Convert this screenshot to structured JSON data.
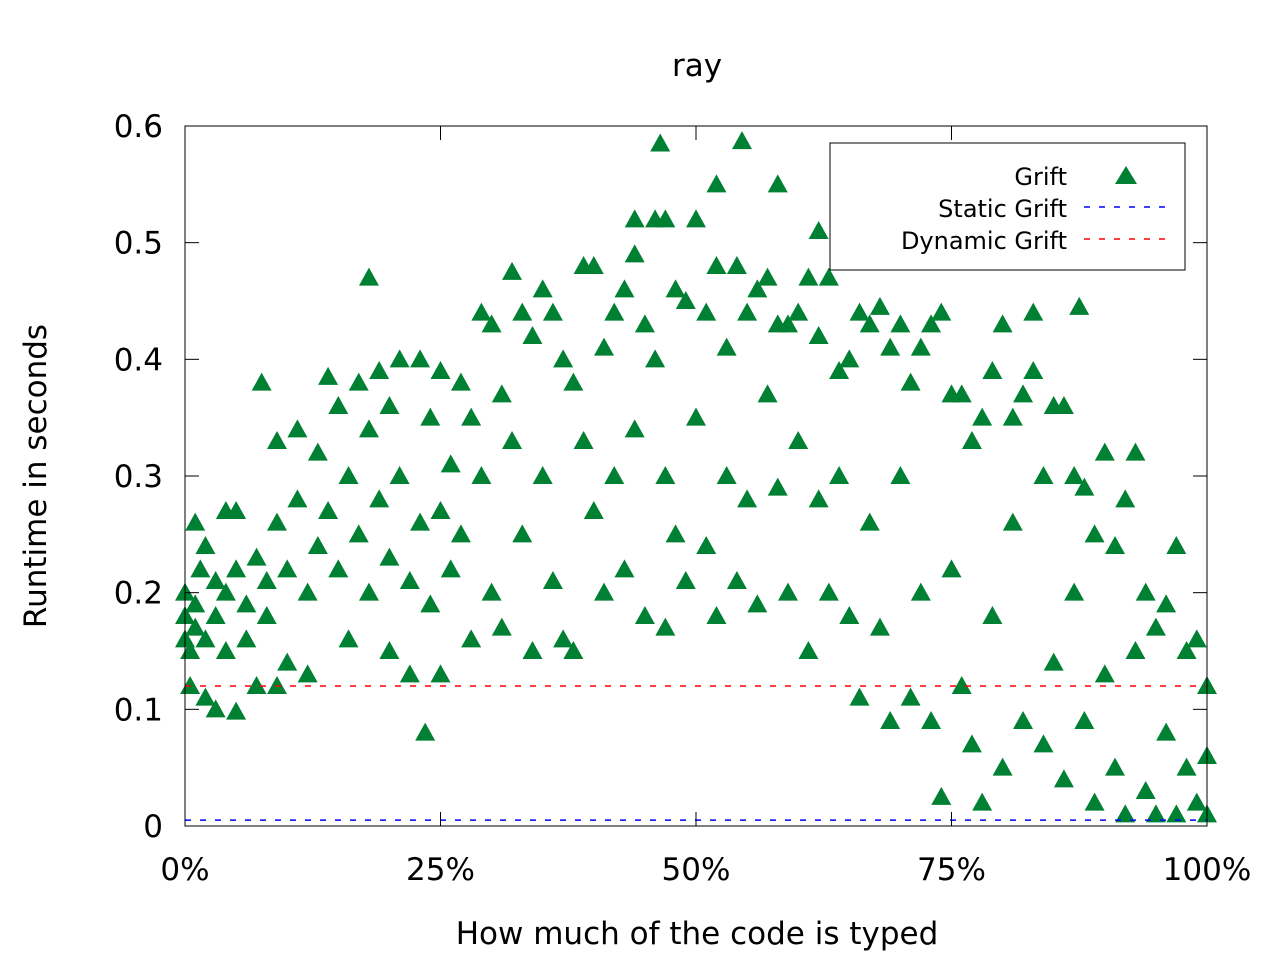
{
  "chart_data": {
    "type": "scatter",
    "title": "ray",
    "xlabel": "How much of the code is typed",
    "ylabel": "Runtime in seconds",
    "xlim": [
      0,
      100
    ],
    "ylim": [
      0,
      0.6
    ],
    "x_ticks": [
      0,
      25,
      50,
      75,
      100
    ],
    "x_tick_labels": [
      "0%",
      "25%",
      "50%",
      "75%",
      "100%"
    ],
    "y_ticks": [
      0,
      0.1,
      0.2,
      0.3,
      0.4,
      0.5,
      0.6
    ],
    "y_tick_labels": [
      "0",
      "0.1",
      "0.2",
      "0.3",
      "0.4",
      "0.5",
      "0.6"
    ],
    "grid": false,
    "legend": {
      "position": "top-right",
      "entries": [
        {
          "name": "Grift",
          "style": "triangle",
          "color": "#008032"
        },
        {
          "name": "Static Grift",
          "style": "dashed-line",
          "color": "#0000ff"
        },
        {
          "name": "Dynamic Grift",
          "style": "dashed-line",
          "color": "#ff0000"
        }
      ]
    },
    "series": [
      {
        "name": "Grift",
        "marker": "triangle",
        "color": "#008032",
        "points": [
          [
            0,
            0.16
          ],
          [
            0,
            0.18
          ],
          [
            0,
            0.2
          ],
          [
            0.5,
            0.15
          ],
          [
            0.5,
            0.12
          ],
          [
            1,
            0.26
          ],
          [
            1,
            0.17
          ],
          [
            1,
            0.19
          ],
          [
            1.5,
            0.22
          ],
          [
            2,
            0.16
          ],
          [
            2,
            0.24
          ],
          [
            2,
            0.11
          ],
          [
            3,
            0.18
          ],
          [
            3,
            0.1
          ],
          [
            3,
            0.21
          ],
          [
            4,
            0.27
          ],
          [
            4,
            0.2
          ],
          [
            4,
            0.15
          ],
          [
            5,
            0.22
          ],
          [
            5,
            0.098
          ],
          [
            5,
            0.27
          ],
          [
            6,
            0.19
          ],
          [
            6,
            0.16
          ],
          [
            7,
            0.23
          ],
          [
            7,
            0.12
          ],
          [
            7.5,
            0.38
          ],
          [
            8,
            0.21
          ],
          [
            8,
            0.18
          ],
          [
            9,
            0.33
          ],
          [
            9,
            0.26
          ],
          [
            9,
            0.12
          ],
          [
            10,
            0.22
          ],
          [
            10,
            0.14
          ],
          [
            11,
            0.34
          ],
          [
            11,
            0.28
          ],
          [
            12,
            0.2
          ],
          [
            12,
            0.13
          ],
          [
            13,
            0.32
          ],
          [
            13,
            0.24
          ],
          [
            14,
            0.385
          ],
          [
            14,
            0.27
          ],
          [
            15,
            0.22
          ],
          [
            15,
            0.36
          ],
          [
            16,
            0.3
          ],
          [
            16,
            0.16
          ],
          [
            17,
            0.38
          ],
          [
            17,
            0.25
          ],
          [
            18,
            0.47
          ],
          [
            18,
            0.34
          ],
          [
            18,
            0.2
          ],
          [
            19,
            0.39
          ],
          [
            19,
            0.28
          ],
          [
            20,
            0.36
          ],
          [
            20,
            0.23
          ],
          [
            20,
            0.15
          ],
          [
            21,
            0.4
          ],
          [
            21,
            0.3
          ],
          [
            22,
            0.21
          ],
          [
            22,
            0.13
          ],
          [
            23,
            0.4
          ],
          [
            23,
            0.26
          ],
          [
            23.5,
            0.08
          ],
          [
            24,
            0.35
          ],
          [
            24,
            0.19
          ],
          [
            25,
            0.39
          ],
          [
            25,
            0.27
          ],
          [
            25,
            0.13
          ],
          [
            26,
            0.31
          ],
          [
            26,
            0.22
          ],
          [
            27,
            0.38
          ],
          [
            27,
            0.25
          ],
          [
            28,
            0.35
          ],
          [
            28,
            0.16
          ],
          [
            29,
            0.44
          ],
          [
            29,
            0.3
          ],
          [
            30,
            0.43
          ],
          [
            30,
            0.2
          ],
          [
            31,
            0.37
          ],
          [
            31,
            0.17
          ],
          [
            32,
            0.475
          ],
          [
            32,
            0.33
          ],
          [
            33,
            0.44
          ],
          [
            33,
            0.25
          ],
          [
            34,
            0.42
          ],
          [
            34,
            0.15
          ],
          [
            35,
            0.46
          ],
          [
            35,
            0.3
          ],
          [
            36,
            0.44
          ],
          [
            36,
            0.21
          ],
          [
            37,
            0.4
          ],
          [
            37,
            0.16
          ],
          [
            38,
            0.38
          ],
          [
            38,
            0.15
          ],
          [
            39,
            0.48
          ],
          [
            39,
            0.33
          ],
          [
            40,
            0.48
          ],
          [
            40,
            0.27
          ],
          [
            41,
            0.41
          ],
          [
            41,
            0.2
          ],
          [
            42,
            0.44
          ],
          [
            42,
            0.3
          ],
          [
            43,
            0.46
          ],
          [
            43,
            0.22
          ],
          [
            44,
            0.52
          ],
          [
            44,
            0.49
          ],
          [
            44,
            0.34
          ],
          [
            45,
            0.43
          ],
          [
            45,
            0.18
          ],
          [
            46,
            0.52
          ],
          [
            46,
            0.4
          ],
          [
            46.5,
            0.585
          ],
          [
            47,
            0.52
          ],
          [
            47,
            0.3
          ],
          [
            47,
            0.17
          ],
          [
            48,
            0.46
          ],
          [
            48,
            0.25
          ],
          [
            49,
            0.45
          ],
          [
            49,
            0.21
          ],
          [
            50,
            0.52
          ],
          [
            50,
            0.35
          ],
          [
            51,
            0.44
          ],
          [
            51,
            0.24
          ],
          [
            52,
            0.55
          ],
          [
            52,
            0.48
          ],
          [
            52,
            0.18
          ],
          [
            53,
            0.41
          ],
          [
            53,
            0.3
          ],
          [
            54,
            0.48
          ],
          [
            54,
            0.21
          ],
          [
            54.5,
            0.587
          ],
          [
            55,
            0.44
          ],
          [
            55,
            0.28
          ],
          [
            56,
            0.46
          ],
          [
            56,
            0.19
          ],
          [
            57,
            0.47
          ],
          [
            57,
            0.37
          ],
          [
            58,
            0.55
          ],
          [
            58,
            0.43
          ],
          [
            58,
            0.29
          ],
          [
            59,
            0.43
          ],
          [
            59,
            0.2
          ],
          [
            60,
            0.44
          ],
          [
            60,
            0.33
          ],
          [
            61,
            0.47
          ],
          [
            61,
            0.15
          ],
          [
            62,
            0.51
          ],
          [
            62,
            0.42
          ],
          [
            62,
            0.28
          ],
          [
            63,
            0.47
          ],
          [
            63,
            0.2
          ],
          [
            64,
            0.39
          ],
          [
            64,
            0.3
          ],
          [
            65,
            0.4
          ],
          [
            65,
            0.18
          ],
          [
            66,
            0.44
          ],
          [
            66,
            0.11
          ],
          [
            67,
            0.43
          ],
          [
            67,
            0.26
          ],
          [
            68,
            0.445
          ],
          [
            68,
            0.17
          ],
          [
            69,
            0.41
          ],
          [
            69,
            0.09
          ],
          [
            70,
            0.43
          ],
          [
            70,
            0.3
          ],
          [
            71,
            0.38
          ],
          [
            71,
            0.11
          ],
          [
            72,
            0.41
          ],
          [
            72,
            0.2
          ],
          [
            73,
            0.43
          ],
          [
            73,
            0.09
          ],
          [
            74,
            0.44
          ],
          [
            74,
            0.025
          ],
          [
            75,
            0.37
          ],
          [
            75,
            0.22
          ],
          [
            76,
            0.37
          ],
          [
            76,
            0.12
          ],
          [
            77,
            0.33
          ],
          [
            77,
            0.07
          ],
          [
            78,
            0.35
          ],
          [
            78,
            0.02
          ],
          [
            79,
            0.39
          ],
          [
            79,
            0.18
          ],
          [
            80,
            0.43
          ],
          [
            80,
            0.05
          ],
          [
            81,
            0.35
          ],
          [
            81,
            0.26
          ],
          [
            82,
            0.37
          ],
          [
            82,
            0.09
          ],
          [
            83,
            0.44
          ],
          [
            83,
            0.39
          ],
          [
            84,
            0.3
          ],
          [
            84,
            0.07
          ],
          [
            85,
            0.36
          ],
          [
            85,
            0.14
          ],
          [
            86,
            0.36
          ],
          [
            86,
            0.04
          ],
          [
            87,
            0.3
          ],
          [
            87,
            0.2
          ],
          [
            87.5,
            0.445
          ],
          [
            88,
            0.29
          ],
          [
            88,
            0.09
          ],
          [
            89,
            0.25
          ],
          [
            89,
            0.02
          ],
          [
            90,
            0.32
          ],
          [
            90,
            0.13
          ],
          [
            91,
            0.24
          ],
          [
            91,
            0.05
          ],
          [
            92,
            0.28
          ],
          [
            92,
            0.01
          ],
          [
            93,
            0.32
          ],
          [
            93,
            0.15
          ],
          [
            94,
            0.2
          ],
          [
            94,
            0.03
          ],
          [
            95,
            0.17
          ],
          [
            95,
            0.01
          ],
          [
            96,
            0.19
          ],
          [
            96,
            0.08
          ],
          [
            97,
            0.24
          ],
          [
            97,
            0.01
          ],
          [
            98,
            0.15
          ],
          [
            98,
            0.05
          ],
          [
            99,
            0.16
          ],
          [
            99,
            0.02
          ],
          [
            100,
            0.12
          ],
          [
            100,
            0.06
          ],
          [
            100,
            0.01
          ]
        ]
      },
      {
        "name": "Static Grift",
        "type": "hline",
        "style": "dashed",
        "color": "#0000ff",
        "y": 0.005
      },
      {
        "name": "Dynamic Grift",
        "type": "hline",
        "style": "dashed",
        "color": "#ff0000",
        "y": 0.12
      }
    ]
  }
}
